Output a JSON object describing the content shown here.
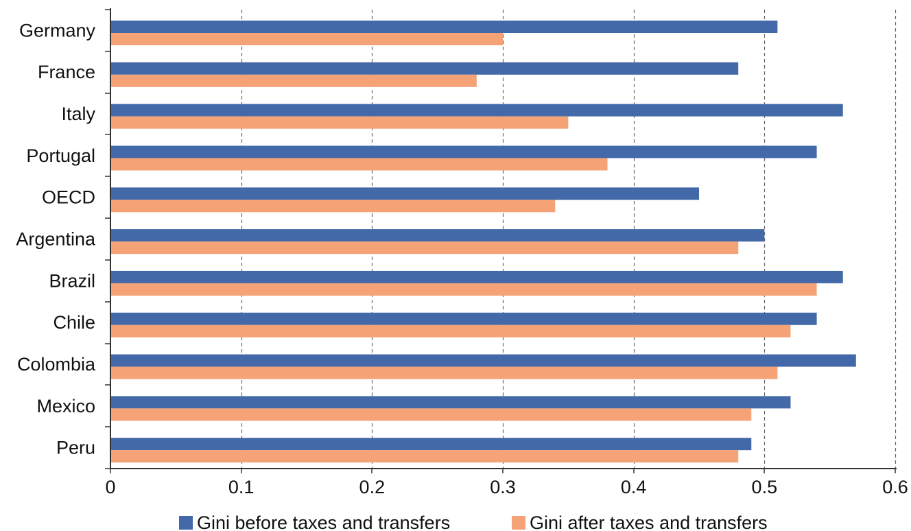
{
  "chart_data": {
    "type": "bar",
    "orientation": "horizontal",
    "categories": [
      "Germany",
      "France",
      "Italy",
      "Portugal",
      "OECD",
      "Argentina",
      "Brazil",
      "Chile",
      "Colombia",
      "Mexico",
      "Peru"
    ],
    "series": [
      {
        "name": "Gini before taxes and transfers",
        "color": "#4369A8",
        "values": [
          0.51,
          0.48,
          0.56,
          0.54,
          0.45,
          0.5,
          0.56,
          0.54,
          0.57,
          0.52,
          0.49
        ]
      },
      {
        "name": "Gini after taxes and transfers",
        "color": "#F5A277",
        "values": [
          0.3,
          0.28,
          0.35,
          0.38,
          0.34,
          0.48,
          0.54,
          0.52,
          0.51,
          0.49,
          0.48
        ]
      }
    ],
    "xlim": [
      0,
      0.6
    ],
    "xticks": [
      "0",
      "0.1",
      "0.2",
      "0.3",
      "0.4",
      "0.5",
      "0.6"
    ],
    "xtick_values": [
      0,
      0.1,
      0.2,
      0.3,
      0.4,
      0.5,
      0.6
    ],
    "grid": "vertical dashed",
    "legend_position": "bottom",
    "title": "",
    "xlabel": "",
    "ylabel": ""
  }
}
